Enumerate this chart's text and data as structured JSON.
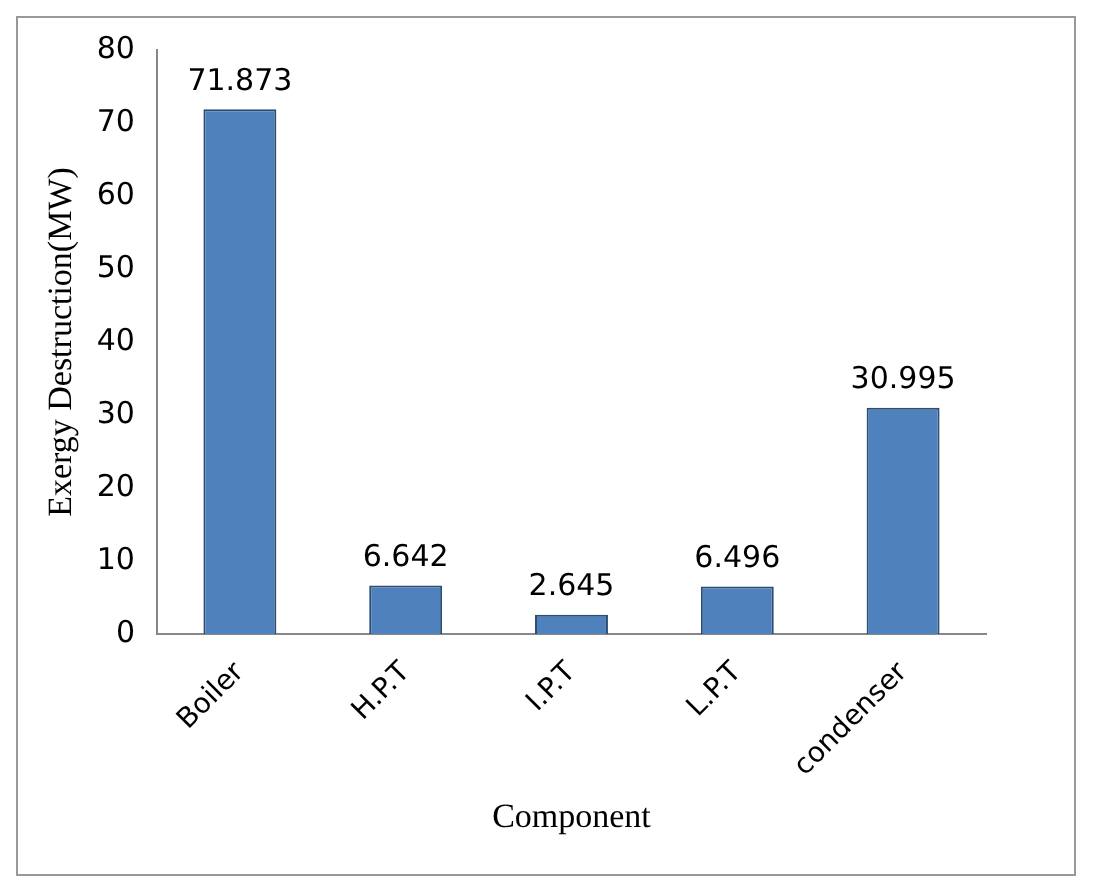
{
  "chart_data": {
    "type": "bar",
    "xlabel": "Component",
    "ylabel": "Exergy Destruction(MW)",
    "categories": [
      "Boiler",
      "H.P.T",
      "I.P.T",
      "L.P.T",
      "condenser"
    ],
    "values": [
      71.873,
      6.642,
      2.645,
      6.496,
      30.995
    ],
    "color": "#4f81bd",
    "ylim": [
      0,
      80
    ],
    "yticks": [
      0,
      10,
      20,
      30,
      40,
      50,
      60,
      70,
      80
    ],
    "grid": false,
    "legend": false,
    "data_labels": true
  }
}
